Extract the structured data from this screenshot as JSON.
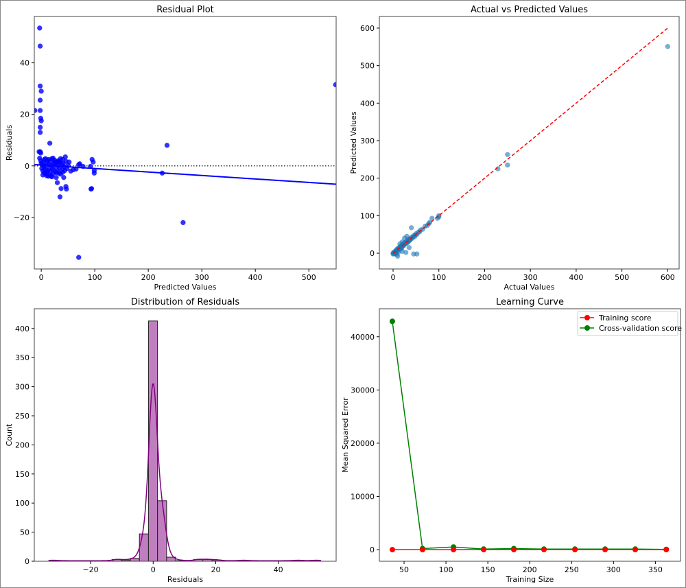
{
  "chart_data": [
    {
      "type": "scatter",
      "title": "Residual Plot",
      "xlabel": "Predicted Values",
      "ylabel": "Residuals",
      "xlim": [
        -13,
        551
      ],
      "ylim": [
        -40,
        58
      ],
      "xticks": [
        0,
        100,
        200,
        300,
        400,
        500
      ],
      "yticks": [
        -20,
        0,
        20,
        40
      ],
      "point_color": "#0000ff",
      "reference_line": {
        "y": 0,
        "style": "dotted",
        "color": "#333333"
      },
      "regression_line": {
        "x": [
          -13,
          551
        ],
        "y": [
          0.5,
          -7.1
        ],
        "color": "#0000ff"
      },
      "points": [
        [
          -3,
          53.5
        ],
        [
          -2,
          46.5
        ],
        [
          -2,
          31
        ],
        [
          0,
          29
        ],
        [
          -2,
          25.5
        ],
        [
          -2,
          21.5
        ],
        [
          -12,
          21.5
        ],
        [
          -1,
          18.5
        ],
        [
          0,
          17.5
        ],
        [
          -2,
          15
        ],
        [
          -2,
          13
        ],
        [
          16,
          8.8
        ],
        [
          -4,
          5.5
        ],
        [
          -2,
          5.5
        ],
        [
          -1,
          5
        ],
        [
          235,
          8
        ],
        [
          226,
          -2.8
        ],
        [
          265,
          -22
        ],
        [
          70,
          -35.5
        ],
        [
          35,
          -12
        ],
        [
          37,
          -8.8
        ],
        [
          46,
          -8
        ],
        [
          47,
          -9
        ],
        [
          93,
          -9
        ],
        [
          94,
          -8.8
        ],
        [
          95,
          2.5
        ],
        [
          97,
          1.5
        ],
        [
          99,
          -1.8
        ],
        [
          99,
          -2.8
        ],
        [
          92,
          -0.2
        ],
        [
          550,
          31.5
        ],
        [
          30,
          -6.5
        ],
        [
          42,
          -4.5
        ],
        [
          45,
          3.5
        ],
        [
          36,
          2.8
        ],
        [
          72,
          0.8
        ],
        [
          70,
          0.5
        ],
        [
          78,
          -0.2
        ],
        [
          65,
          -1.2
        ],
        [
          55,
          -2
        ],
        [
          60,
          -1.5
        ],
        [
          52,
          1.5
        ],
        [
          -3,
          3
        ],
        [
          -1,
          2
        ],
        [
          0,
          1
        ],
        [
          1,
          -1
        ],
        [
          2,
          0.5
        ],
        [
          3,
          -2
        ],
        [
          4,
          1.5
        ],
        [
          5,
          -0.5
        ],
        [
          6,
          2.5
        ],
        [
          7,
          -1.5
        ],
        [
          8,
          0
        ],
        [
          9,
          -3
        ],
        [
          10,
          1
        ],
        [
          11,
          -2.5
        ],
        [
          12,
          2
        ],
        [
          13,
          -4
        ],
        [
          14,
          0.5
        ],
        [
          15,
          -1
        ],
        [
          16,
          -3.5
        ],
        [
          17,
          1.8
        ],
        [
          18,
          -2
        ],
        [
          19,
          0.3
        ],
        [
          20,
          2.8
        ],
        [
          21,
          -1.2
        ],
        [
          22,
          -3
        ],
        [
          23,
          1
        ],
        [
          24,
          -0.5
        ],
        [
          25,
          2.2
        ],
        [
          26,
          -2.2
        ],
        [
          27,
          0.8
        ],
        [
          28,
          -4.5
        ],
        [
          29,
          1.5
        ],
        [
          30,
          -1.8
        ],
        [
          31,
          0
        ],
        [
          32,
          2
        ],
        [
          33,
          -2.8
        ],
        [
          34,
          -0.8
        ],
        [
          35,
          1.2
        ],
        [
          36,
          -3.2
        ],
        [
          38,
          0.5
        ],
        [
          39,
          -1.5
        ],
        [
          40,
          -2.5
        ],
        [
          41,
          1
        ],
        [
          43,
          -0.3
        ],
        [
          44,
          -1.8
        ],
        [
          46,
          1.8
        ],
        [
          48,
          -1
        ],
        [
          50,
          0.2
        ],
        [
          3,
          -3.5
        ],
        [
          8,
          2.8
        ],
        [
          12,
          -1.8
        ],
        [
          18,
          -4
        ],
        [
          22,
          3
        ],
        [
          26,
          1.5
        ],
        [
          6,
          -2.8
        ],
        [
          14,
          2.5
        ],
        [
          33,
          1.8
        ],
        [
          40,
          2.5
        ],
        [
          28,
          -2.6
        ],
        [
          20,
          -4.2
        ],
        [
          10,
          -3.8
        ]
      ]
    },
    {
      "type": "scatter",
      "title": "Actual vs Predicted Values",
      "xlabel": "Actual Values",
      "ylabel": "Predicted Values",
      "xlim": [
        -30,
        625
      ],
      "ylim": [
        -42,
        631
      ],
      "xticks": [
        0,
        100,
        200,
        300,
        400,
        500,
        600
      ],
      "yticks": [
        0,
        100,
        200,
        300,
        400,
        500,
        600
      ],
      "point_color": "#1f77b4",
      "point_alpha": 0.6,
      "reference_line": {
        "x": [
          0,
          600
        ],
        "y": [
          0,
          600
        ],
        "style": "dashed",
        "color": "#ff0000"
      },
      "points": [
        [
          600,
          551
        ],
        [
          250,
          263
        ],
        [
          250,
          235
        ],
        [
          229,
          225
        ],
        [
          40,
          68
        ],
        [
          45,
          -2
        ],
        [
          52,
          -2
        ],
        [
          10,
          -8
        ],
        [
          5,
          -1
        ],
        [
          0,
          0
        ],
        [
          2,
          3
        ],
        [
          3,
          -2
        ],
        [
          5,
          5
        ],
        [
          7,
          4
        ],
        [
          8,
          10
        ],
        [
          10,
          8
        ],
        [
          12,
          12
        ],
        [
          14,
          13
        ],
        [
          15,
          17
        ],
        [
          17,
          15
        ],
        [
          18,
          20
        ],
        [
          20,
          18
        ],
        [
          22,
          24
        ],
        [
          24,
          22
        ],
        [
          25,
          28
        ],
        [
          27,
          25
        ],
        [
          28,
          30
        ],
        [
          30,
          27
        ],
        [
          32,
          35
        ],
        [
          34,
          32
        ],
        [
          35,
          38
        ],
        [
          37,
          35
        ],
        [
          40,
          42
        ],
        [
          42,
          40
        ],
        [
          45,
          47
        ],
        [
          47,
          44
        ],
        [
          50,
          52
        ],
        [
          52,
          50
        ],
        [
          55,
          56
        ],
        [
          58,
          57
        ],
        [
          60,
          62
        ],
        [
          65,
          64
        ],
        [
          70,
          72
        ],
        [
          75,
          74
        ],
        [
          78,
          79
        ],
        [
          80,
          82
        ],
        [
          85,
          93
        ],
        [
          97,
          93
        ],
        [
          100,
          97
        ],
        [
          100,
          100
        ],
        [
          25,
          40
        ],
        [
          20,
          30
        ],
        [
          15,
          25
        ],
        [
          30,
          45
        ],
        [
          35,
          15
        ],
        [
          12,
          3
        ],
        [
          20,
          5
        ],
        [
          28,
          2
        ],
        [
          8,
          -3
        ],
        [
          18,
          12
        ],
        [
          0,
          -2
        ],
        [
          1,
          1
        ],
        [
          4,
          2
        ],
        [
          6,
          7
        ],
        [
          9,
          6
        ],
        [
          11,
          14
        ],
        [
          13,
          10
        ],
        [
          16,
          18
        ],
        [
          19,
          16
        ],
        [
          21,
          22
        ],
        [
          23,
          20
        ],
        [
          26,
          26
        ],
        [
          29,
          28
        ],
        [
          31,
          31
        ],
        [
          33,
          30
        ],
        [
          36,
          36
        ],
        [
          38,
          37
        ],
        [
          43,
          43
        ],
        [
          48,
          48
        ]
      ]
    },
    {
      "type": "bar",
      "title": "Distribution of Residuals",
      "xlabel": "Residuals",
      "ylabel": "Count",
      "xlim": [
        -38,
        58.5
      ],
      "ylim": [
        0,
        434
      ],
      "xticks": [
        -20,
        0,
        20,
        40
      ],
      "yticks": [
        0,
        50,
        100,
        150,
        200,
        250,
        300,
        350,
        400
      ],
      "bar_color": "#bf7fbf",
      "kde_color": "#800080",
      "kde": true,
      "bin_start": -33.4,
      "bin_width": 2.9,
      "counts": [
        1,
        0,
        0,
        0,
        0,
        0,
        0,
        3,
        2,
        5,
        47,
        413,
        104,
        7,
        1,
        0,
        3,
        3,
        2,
        0,
        0,
        1,
        0,
        0,
        0,
        0,
        0,
        1,
        0,
        1
      ]
    },
    {
      "type": "line",
      "title": "Learning Curve",
      "xlabel": "Training Size",
      "ylabel": "Mean Squared Error",
      "xlim": [
        20.5,
        380
      ],
      "ylim": [
        -2180,
        45256
      ],
      "xticks": [
        50,
        100,
        150,
        200,
        250,
        300,
        350
      ],
      "yticks": [
        0,
        10000,
        20000,
        30000,
        40000
      ],
      "legend": "top-right",
      "x": [
        36,
        72,
        109,
        145,
        181,
        217,
        254,
        290,
        326,
        363
      ],
      "series": [
        {
          "name": "Training score",
          "color": "#ff0000",
          "values": [
            0,
            0,
            0,
            10,
            10,
            10,
            10,
            10,
            10,
            10
          ]
        },
        {
          "name": "Cross-validation score",
          "color": "#008000",
          "values": [
            42900,
            200,
            500,
            100,
            200,
            100,
            100,
            100,
            100,
            50
          ]
        }
      ]
    }
  ]
}
